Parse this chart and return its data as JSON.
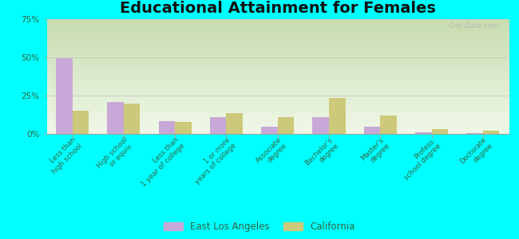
{
  "title": "Educational Attainment for Females",
  "categories": [
    "Less than\nhigh school",
    "High school\nor equiv.",
    "Less than\n1 year of college",
    "1 or more\nyears of college",
    "Associate\ndegree",
    "Bachelor's\ndegree",
    "Master's\ndegree",
    "Profess.\nschool degree",
    "Doctorate\ndegree"
  ],
  "east_la": [
    49.5,
    21.0,
    8.5,
    11.0,
    4.5,
    11.0,
    4.5,
    1.0,
    0.5
  ],
  "california": [
    15.0,
    20.0,
    8.0,
    13.5,
    11.0,
    23.5,
    12.0,
    3.0,
    2.0
  ],
  "east_la_color": "#c8a8d8",
  "california_color": "#cdc97a",
  "background_color": "#00ffff",
  "ylim": [
    0,
    75
  ],
  "yticks": [
    0,
    25,
    50,
    75
  ],
  "ytick_labels": [
    "0%",
    "25%",
    "50%",
    "75%"
  ],
  "legend_east_la": "East Los Angeles",
  "legend_california": "California",
  "title_fontsize": 14,
  "bar_width": 0.32,
  "grad_top": "#c8ddb0",
  "grad_bottom": "#f0f8e8"
}
